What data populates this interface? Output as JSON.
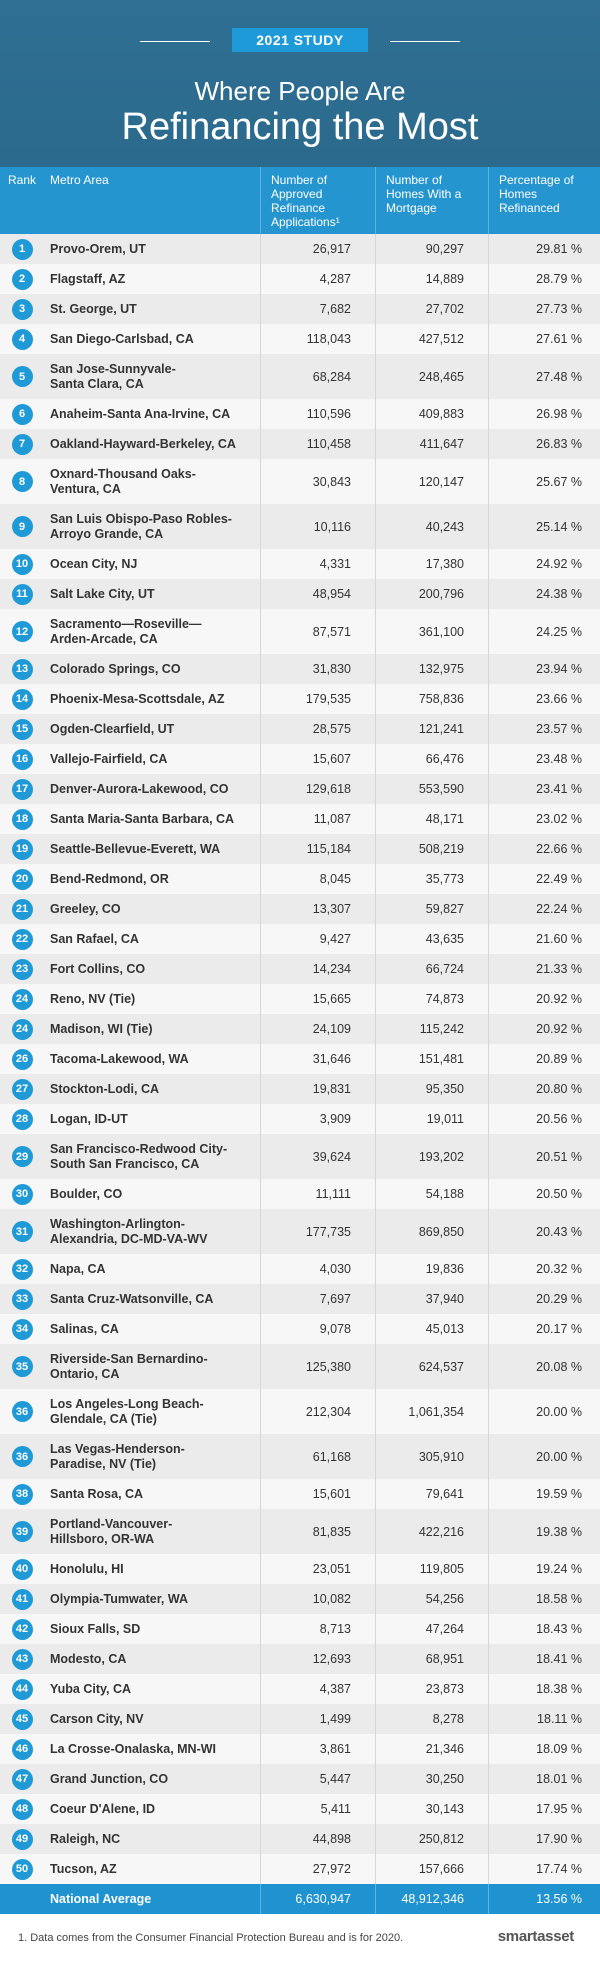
{
  "header": {
    "badge": "2021 STUDY",
    "title_line1": "Where People Are",
    "title_line2": "Refinancing the Most"
  },
  "table": {
    "columns": [
      "Rank",
      "Metro Area",
      "Number of Approved Refinance Applications¹",
      "Number of Homes With a Mortgage",
      "Percentage of Homes Refinanced"
    ],
    "rows": [
      [
        "1",
        "Provo-Orem, UT",
        "26,917",
        "90,297",
        "29.81 %"
      ],
      [
        "2",
        "Flagstaff, AZ",
        "4,287",
        "14,889",
        "28.79 %"
      ],
      [
        "3",
        "St. George, UT",
        "7,682",
        "27,702",
        "27.73 %"
      ],
      [
        "4",
        "San Diego-Carlsbad, CA",
        "118,043",
        "427,512",
        "27.61 %"
      ],
      [
        "5",
        "San Jose-Sunnyvale-\nSanta Clara, CA",
        "68,284",
        "248,465",
        "27.48 %"
      ],
      [
        "6",
        "Anaheim-Santa Ana-Irvine, CA",
        "110,596",
        "409,883",
        "26.98 %"
      ],
      [
        "7",
        "Oakland-Hayward-Berkeley, CA",
        "110,458",
        "411,647",
        "26.83 %"
      ],
      [
        "8",
        "Oxnard-Thousand Oaks-\nVentura, CA",
        "30,843",
        "120,147",
        "25.67 %"
      ],
      [
        "9",
        "San Luis Obispo-Paso Robles-\nArroyo Grande, CA",
        "10,116",
        "40,243",
        "25.14 %"
      ],
      [
        "10",
        "Ocean City, NJ",
        "4,331",
        "17,380",
        "24.92 %"
      ],
      [
        "11",
        "Salt Lake City, UT",
        "48,954",
        "200,796",
        "24.38 %"
      ],
      [
        "12",
        "Sacramento—Roseville—\nArden-Arcade, CA",
        "87,571",
        "361,100",
        "24.25 %"
      ],
      [
        "13",
        "Colorado Springs, CO",
        "31,830",
        "132,975",
        "23.94 %"
      ],
      [
        "14",
        "Phoenix-Mesa-Scottsdale, AZ",
        "179,535",
        "758,836",
        "23.66 %"
      ],
      [
        "15",
        "Ogden-Clearfield, UT",
        "28,575",
        "121,241",
        "23.57 %"
      ],
      [
        "16",
        "Vallejo-Fairfield, CA",
        "15,607",
        "66,476",
        "23.48 %"
      ],
      [
        "17",
        "Denver-Aurora-Lakewood, CO",
        "129,618",
        "553,590",
        "23.41 %"
      ],
      [
        "18",
        "Santa Maria-Santa Barbara, CA",
        "11,087",
        "48,171",
        "23.02 %"
      ],
      [
        "19",
        "Seattle-Bellevue-Everett, WA",
        "115,184",
        "508,219",
        "22.66 %"
      ],
      [
        "20",
        "Bend-Redmond, OR",
        "8,045",
        "35,773",
        "22.49 %"
      ],
      [
        "21",
        "Greeley, CO",
        "13,307",
        "59,827",
        "22.24 %"
      ],
      [
        "22",
        "San Rafael, CA",
        "9,427",
        "43,635",
        "21.60 %"
      ],
      [
        "23",
        "Fort Collins, CO",
        "14,234",
        "66,724",
        "21.33 %"
      ],
      [
        "24",
        "Reno, NV (Tie)",
        "15,665",
        "74,873",
        "20.92 %"
      ],
      [
        "24",
        "Madison, WI (Tie)",
        "24,109",
        "115,242",
        "20.92 %"
      ],
      [
        "26",
        "Tacoma-Lakewood, WA",
        "31,646",
        "151,481",
        "20.89 %"
      ],
      [
        "27",
        "Stockton-Lodi, CA",
        "19,831",
        "95,350",
        "20.80 %"
      ],
      [
        "28",
        "Logan, ID-UT",
        "3,909",
        "19,011",
        "20.56 %"
      ],
      [
        "29",
        "San Francisco-Redwood City-\nSouth San Francisco, CA",
        "39,624",
        "193,202",
        "20.51 %"
      ],
      [
        "30",
        "Boulder, CO",
        "11,111",
        "54,188",
        "20.50 %"
      ],
      [
        "31",
        "Washington-Arlington-\nAlexandria, DC-MD-VA-WV",
        "177,735",
        "869,850",
        "20.43 %"
      ],
      [
        "32",
        "Napa, CA",
        "4,030",
        "19,836",
        "20.32 %"
      ],
      [
        "33",
        "Santa Cruz-Watsonville, CA",
        "7,697",
        "37,940",
        "20.29 %"
      ],
      [
        "34",
        "Salinas, CA",
        "9,078",
        "45,013",
        "20.17 %"
      ],
      [
        "35",
        "Riverside-San Bernardino-\nOntario, CA",
        "125,380",
        "624,537",
        "20.08 %"
      ],
      [
        "36",
        "Los Angeles-Long Beach-\nGlendale, CA (Tie)",
        "212,304",
        "1,061,354",
        "20.00 %"
      ],
      [
        "36",
        "Las Vegas-Henderson-\nParadise, NV (Tie)",
        "61,168",
        "305,910",
        "20.00 %"
      ],
      [
        "38",
        "Santa Rosa, CA",
        "15,601",
        "79,641",
        "19.59 %"
      ],
      [
        "39",
        "Portland-Vancouver-\nHillsboro, OR-WA",
        "81,835",
        "422,216",
        "19.38 %"
      ],
      [
        "40",
        "Honolulu, HI",
        "23,051",
        "119,805",
        "19.24 %"
      ],
      [
        "41",
        "Olympia-Tumwater, WA",
        "10,082",
        "54,256",
        "18.58 %"
      ],
      [
        "42",
        "Sioux Falls, SD",
        "8,713",
        "47,264",
        "18.43 %"
      ],
      [
        "43",
        "Modesto, CA",
        "12,693",
        "68,951",
        "18.41 %"
      ],
      [
        "44",
        "Yuba City, CA",
        "4,387",
        "23,873",
        "18.38 %"
      ],
      [
        "45",
        "Carson City, NV",
        "1,499",
        "8,278",
        "18.11 %"
      ],
      [
        "46",
        "La Crosse-Onalaska, MN-WI",
        "3,861",
        "21,346",
        "18.09 %"
      ],
      [
        "47",
        "Grand Junction, CO",
        "5,447",
        "30,250",
        "18.01 %"
      ],
      [
        "48",
        "Coeur D'Alene, ID",
        "5,411",
        "30,143",
        "17.95 %"
      ],
      [
        "49",
        "Raleigh, NC",
        "44,898",
        "250,812",
        "17.90 %"
      ],
      [
        "50",
        "Tucson, AZ",
        "27,972",
        "157,666",
        "17.74 %"
      ]
    ],
    "average": [
      "National Average",
      "6,630,947",
      "48,912,346",
      "13.56 %"
    ]
  },
  "footer": {
    "note": "1. Data comes from the Consumer Financial Protection Bureau and is for 2020.",
    "logo": "smartasset"
  }
}
